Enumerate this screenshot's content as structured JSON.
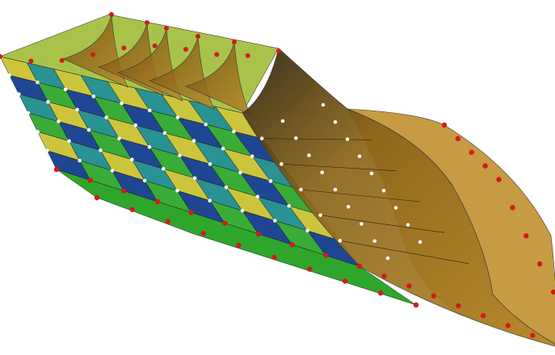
{
  "scene": {
    "background": "#ffffff",
    "tile_colors": [
      "#c9c232",
      "#2ea62c",
      "#1d8c8c",
      "#133c8c",
      "#b58a2a"
    ],
    "sheet_color": "#a87a22",
    "sheet_light_color": "#c0902e",
    "edge_color": "#3a3a3a",
    "control_point_color": "#d41a1a",
    "interior_point_color": "#ffffff"
  }
}
